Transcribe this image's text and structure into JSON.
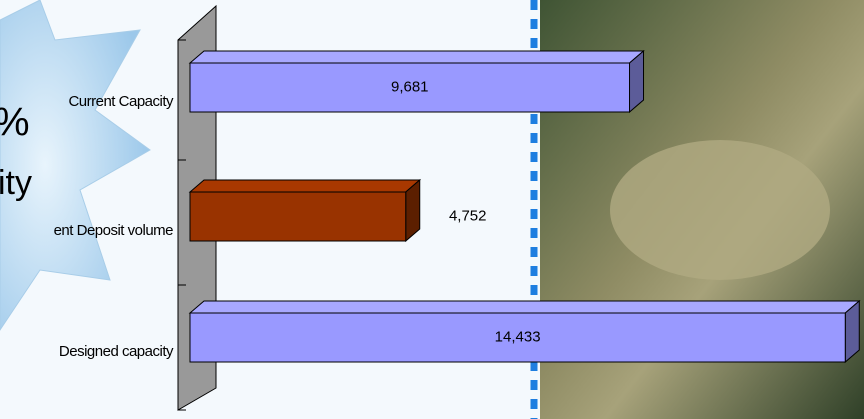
{
  "chart_data": {
    "type": "bar",
    "orientation": "horizontal",
    "annotations": [
      "%",
      "ity"
    ],
    "categories": [
      "Current Capacity",
      "ent Deposit volume",
      "Designed capacity"
    ],
    "values": [
      9681,
      4752,
      14433
    ],
    "value_labels": [
      "9,681",
      "4,752",
      "14,433"
    ],
    "colors": [
      "#9999ff",
      "#993300",
      "#9999ff"
    ],
    "xlim": [
      0,
      15000
    ]
  }
}
